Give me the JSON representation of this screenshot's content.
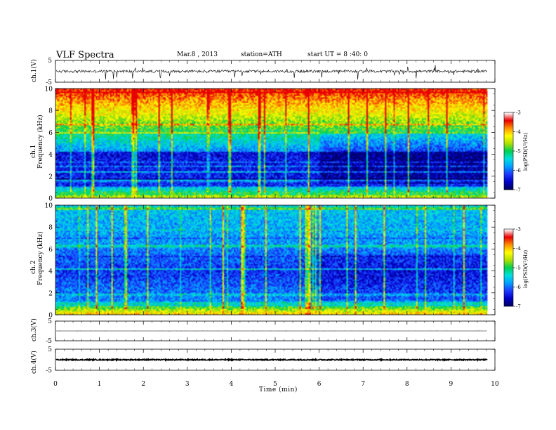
{
  "header": {
    "title": "VLF  Spectra",
    "date": "Mar.8  , 2013",
    "station": "station=ATH",
    "start": "start  UT  =    8  :40: 0"
  },
  "colors": {
    "colormap": [
      "#000060",
      "#0000c8",
      "#1e3cff",
      "#00a0ff",
      "#00e0e0",
      "#00d050",
      "#b0e000",
      "#ffff00",
      "#ff9000",
      "#e80000",
      "#ffffff"
    ]
  },
  "chart_data": [
    {
      "type": "line",
      "panel": "ch1",
      "ylabel": "ch.1(V)",
      "ylim": [
        -5,
        5
      ],
      "yticks": [
        "5",
        "-5"
      ],
      "trace_baseline": 0,
      "trace_amplitude": 0.6,
      "spike_amplitude": 3,
      "x_range": [
        0,
        9.83
      ]
    },
    {
      "type": "heatmap",
      "panel": "ch1",
      "ylabel": "ch.1\nFrequency  (kHz)",
      "ylabel_line1": "ch.1",
      "ylabel_line2": "Frequency  (kHz)",
      "ylim": [
        0,
        10
      ],
      "yticks": [
        "0",
        "2",
        "4",
        "6",
        "8",
        "10"
      ],
      "colorbar_label": "log(PSD(V²/Hz)",
      "colorbar_range": [
        -7,
        -3
      ],
      "colorbar_ticks": [
        "-3",
        "-4",
        "-5",
        "-6",
        "-7"
      ]
    },
    {
      "type": "heatmap",
      "panel": "ch2",
      "ylabel": "ch.2\nFrequency  (kHz)",
      "ylabel_line1": "ch.2",
      "ylabel_line2": "Frequency  (kHz)",
      "ylim": [
        0,
        10
      ],
      "yticks": [
        "0",
        "2",
        "4",
        "6",
        "8",
        "10"
      ],
      "colorbar_label": "log(PSD(V²/Hz)",
      "colorbar_range": [
        -7,
        -3
      ],
      "colorbar_ticks": [
        "-3",
        "-4",
        "-5",
        "-6",
        "-7"
      ]
    },
    {
      "type": "line",
      "panel": "ch3",
      "ylabel": "ch.3(V)",
      "ylim": [
        -5,
        5
      ],
      "yticks": [
        "5",
        "-5"
      ],
      "trace_baseline": 0,
      "trace_amplitude": 0.02,
      "x_range": [
        0,
        9.83
      ]
    },
    {
      "type": "line",
      "panel": "ch4",
      "ylabel": "ch.4(V)",
      "ylim": [
        -5,
        5
      ],
      "yticks": [
        "5",
        "-5"
      ],
      "trace_baseline": 0,
      "trace_amplitude": 0.25,
      "x_range": [
        0,
        9.83
      ]
    }
  ],
  "xaxis": {
    "label": "Time  (min)",
    "range": [
      0,
      10
    ],
    "ticks": [
      "0",
      "1",
      "2",
      "3",
      "4",
      "5",
      "6",
      "7",
      "8",
      "9",
      "10"
    ]
  }
}
